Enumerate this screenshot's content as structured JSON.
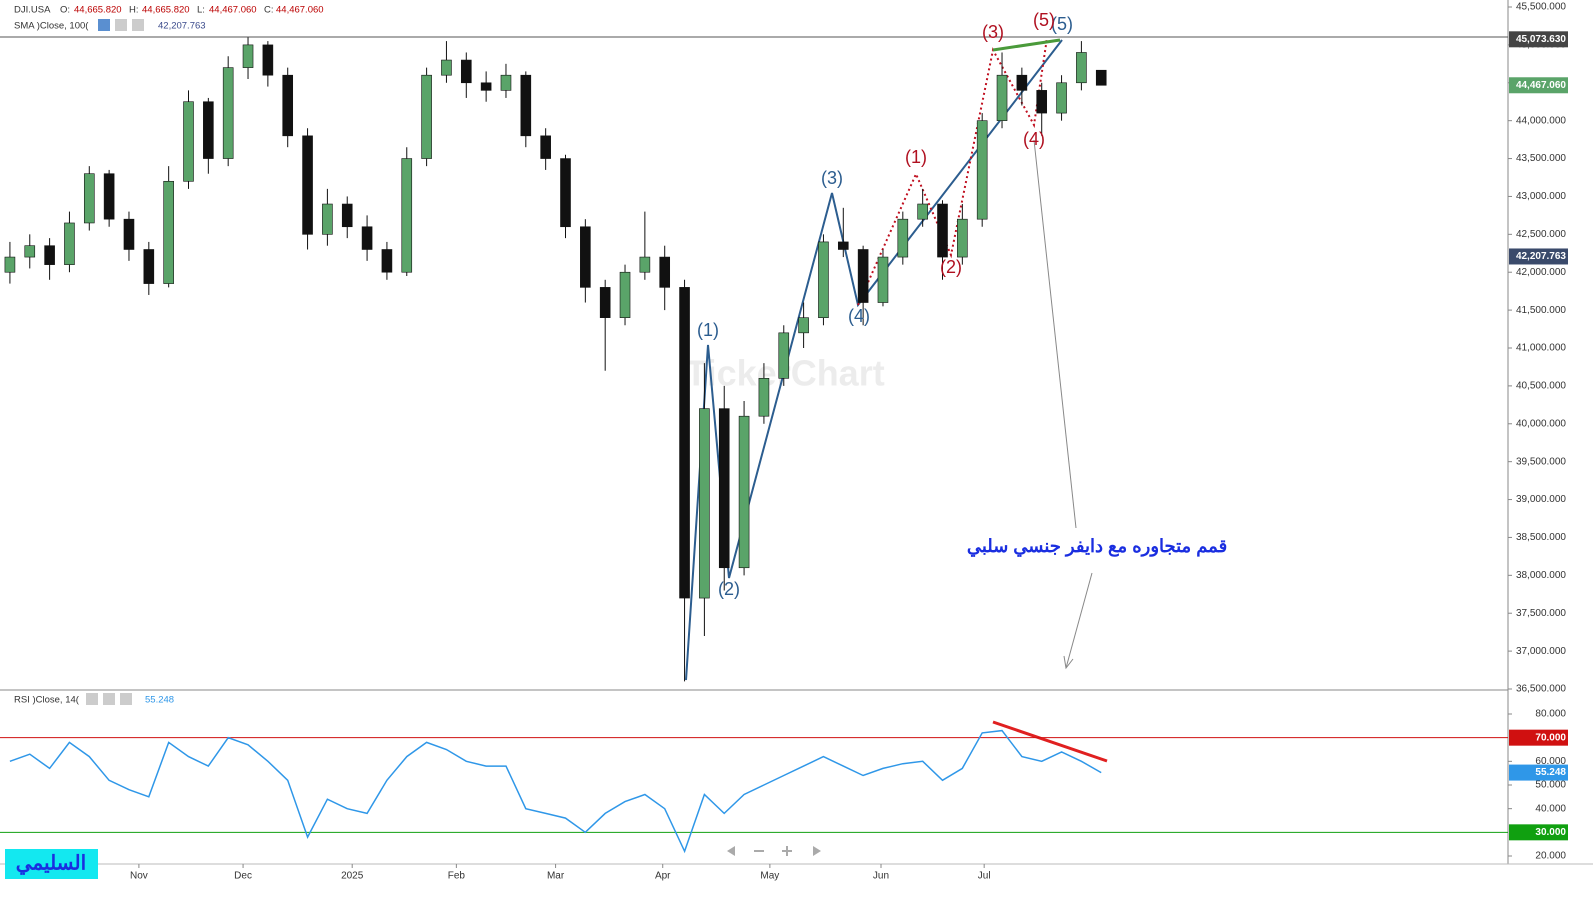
{
  "chart_data": [
    {
      "type": "candlestick",
      "header": {
        "symbol": "DJI.USA",
        "o_label": "O:",
        "o": "44,665.820",
        "h_label": "H:",
        "h": "44,665.820",
        "l_label": "L:",
        "l": "44,467.060",
        "c_label": "C:",
        "c": "44,467.060",
        "sma": "SMA  )Close, 100(",
        "sma_value": "42,207.763"
      },
      "watermark": "TickerChart",
      "categories": [
        null,
        null,
        null,
        null,
        null,
        null,
        null,
        null,
        null,
        null,
        null,
        null,
        null,
        null,
        null,
        null,
        null,
        null,
        null,
        null,
        null,
        null,
        null,
        null,
        null,
        null,
        null,
        null,
        null,
        null,
        null,
        null,
        null,
        null,
        null,
        null,
        null,
        null,
        null,
        null,
        null,
        null,
        null,
        null,
        null,
        null,
        null,
        null,
        null,
        null,
        null,
        null,
        null,
        null,
        null,
        null
      ],
      "open": [
        42000,
        42200,
        42350,
        42100,
        42650,
        43300,
        42700,
        42300,
        41850,
        43200,
        44250,
        43500,
        44700,
        45000,
        44600,
        43800,
        42500,
        42900,
        42600,
        42300,
        42000,
        43500,
        44600,
        44800,
        44500,
        44400,
        44600,
        43800,
        43500,
        42600,
        41800,
        41400,
        42000,
        42200,
        41800,
        37700,
        40200,
        38100,
        40100,
        40600,
        41200,
        41400,
        42400,
        42300,
        41600,
        42200,
        42700,
        42900,
        42200,
        42700,
        44000,
        44600,
        44400,
        44100,
        44500,
        44665.82
      ],
      "high": [
        42400,
        42500,
        42450,
        42800,
        43400,
        43350,
        42800,
        42400,
        43400,
        44400,
        44300,
        44850,
        45100,
        45050,
        44700,
        43900,
        43100,
        43000,
        42750,
        42400,
        43650,
        44700,
        45050,
        44900,
        44650,
        44750,
        44650,
        43900,
        43550,
        42700,
        41900,
        42100,
        42800,
        42350,
        41900,
        40800,
        40500,
        40300,
        40800,
        41300,
        41600,
        42500,
        42850,
        42350,
        42300,
        42800,
        43100,
        42950,
        42900,
        44100,
        44900,
        44700,
        44500,
        44600,
        45050,
        44665.82
      ],
      "low": [
        41850,
        42050,
        41900,
        42000,
        42550,
        42600,
        42150,
        41700,
        41800,
        43100,
        43300,
        43400,
        44550,
        44450,
        43650,
        42300,
        42350,
        42450,
        42150,
        41900,
        41950,
        43400,
        44500,
        44300,
        44250,
        44300,
        43650,
        43350,
        42450,
        41600,
        40700,
        41300,
        41900,
        41500,
        36600,
        37200,
        37800,
        38000,
        40000,
        40500,
        41000,
        41300,
        42200,
        41300,
        41550,
        42100,
        42600,
        41900,
        42100,
        42600,
        43900,
        44200,
        43800,
        44000,
        44400,
        44467.06
      ],
      "close": [
        42200,
        42350,
        42100,
        42650,
        43300,
        42700,
        42300,
        41850,
        43200,
        44250,
        43500,
        44700,
        45000,
        44600,
        43800,
        42500,
        42900,
        42600,
        42300,
        42000,
        43500,
        44600,
        44800,
        44500,
        44400,
        44600,
        43800,
        43500,
        42600,
        41800,
        41400,
        42000,
        42200,
        41800,
        37700,
        40200,
        38100,
        40100,
        40600,
        41200,
        41400,
        42400,
        42300,
        41600,
        42200,
        42700,
        42900,
        42200,
        42700,
        44000,
        44600,
        44400,
        44100,
        44500,
        44900,
        44467.06
      ],
      "up_color": "#5aa469",
      "down_color": "#111111",
      "xlim": [
        -0.5,
        75.5
      ],
      "xticks": [
        {
          "value": 6.5,
          "label": "Nov"
        },
        {
          "value": 11.75,
          "label": "Dec"
        },
        {
          "value": 17.25,
          "label": "2025"
        },
        {
          "value": 22.5,
          "label": "Feb"
        },
        {
          "value": 27.5,
          "label": "Mar"
        },
        {
          "value": 32.9,
          "label": "Apr"
        },
        {
          "value": 38.3,
          "label": "May"
        },
        {
          "value": 43.9,
          "label": "Jun"
        },
        {
          "value": 49.1,
          "label": "Jul"
        }
      ],
      "ylim": [
        36500,
        45500
      ],
      "yticks": [
        {
          "value": 45500,
          "label": "45,500.000"
        },
        {
          "value": 45000,
          "label": "45,000.000"
        },
        {
          "value": 44500,
          "label": "44,500.000"
        },
        {
          "value": 44000,
          "label": "44,000.000"
        },
        {
          "value": 43500,
          "label": "43,500.000"
        },
        {
          "value": 43000,
          "label": "43,000.000"
        },
        {
          "value": 42500,
          "label": "42,500.000"
        },
        {
          "value": 42000,
          "label": "42,000.000"
        },
        {
          "value": 41500,
          "label": "41,500.000"
        },
        {
          "value": 41000,
          "label": "41,000.000"
        },
        {
          "value": 40500,
          "label": "40,500.000"
        },
        {
          "value": 40000,
          "label": "40,000.000"
        },
        {
          "value": 39500,
          "label": "39,500.000"
        },
        {
          "value": 39000,
          "label": "39,000.000"
        },
        {
          "value": 38500,
          "label": "38,500.000"
        },
        {
          "value": 38000,
          "label": "38,000.000"
        },
        {
          "value": 37500,
          "label": "37,500.000"
        },
        {
          "value": 37000,
          "label": "37,000.000"
        },
        {
          "value": 36500,
          "label": "36,500.000"
        }
      ],
      "price_labels": [
        {
          "value": 45073.63,
          "label": "45,073.630",
          "color": "#444444"
        },
        {
          "value": 44467.06,
          "label": "44,467.060",
          "color": "#5aa469"
        },
        {
          "value": 42207.763,
          "label": "42,207.763",
          "color": "#3a4a6b"
        }
      ],
      "blue_waves": [
        "(1)",
        "(2)",
        "(3)",
        "(4)",
        "(5)"
      ],
      "red_waves": [
        "(1)",
        "(2)",
        "(3)",
        "(4)",
        "(5)"
      ],
      "note": "قمم متجاوره مع دايفر جنسي سلبي",
      "author": "السليمي"
    },
    {
      "type": "line",
      "header": {
        "name": "RSI  )Close, 14(",
        "value": "55.248"
      },
      "values": [
        60,
        63,
        57,
        68,
        62,
        52,
        48,
        45,
        68,
        62,
        58,
        70,
        67,
        60,
        52,
        28,
        44,
        40,
        38,
        52,
        62,
        68,
        65,
        60,
        58,
        58,
        40,
        38,
        36,
        30,
        38,
        43,
        46,
        40,
        22,
        46,
        38,
        46,
        50,
        54,
        58,
        62,
        58,
        54,
        57,
        59,
        60,
        52,
        57,
        72,
        73,
        62,
        60,
        64,
        60,
        55.248
      ],
      "color": "#2f97e8",
      "ylim": [
        20,
        80
      ],
      "yticks": [
        {
          "value": 80,
          "label": "80.000"
        },
        {
          "value": 60,
          "label": "60.000"
        },
        {
          "value": 50,
          "label": "50.000"
        },
        {
          "value": 40,
          "label": "40.000"
        },
        {
          "value": 20,
          "label": "20.000"
        }
      ],
      "levels": [
        {
          "value": 70,
          "label": "70.000",
          "color": "#d01010"
        },
        {
          "value": 30,
          "label": "30.000",
          "color": "#10a010"
        }
      ],
      "last_label": {
        "value": 55.248,
        "label": "55.248",
        "color": "#2f97e8"
      }
    }
  ]
}
